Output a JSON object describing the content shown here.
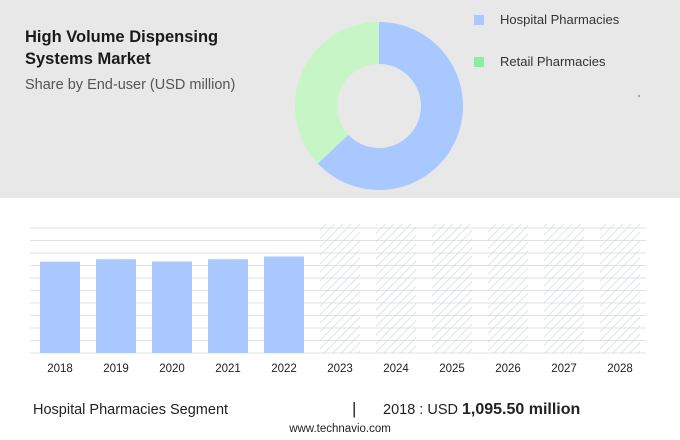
{
  "title": "High Volume Dispensing Systems Market",
  "subtitle": "Share by End-user (USD million)",
  "legend": [
    {
      "label": "Hospital Pharmacies",
      "color": "#a8c8ff"
    },
    {
      "label": "Retail Pharmacies",
      "color": "#86f0a0"
    }
  ],
  "footer": {
    "segment": "Hospital Pharmacies Segment",
    "divider": "|",
    "year_prefix": "2018 : USD ",
    "value": "1,095.50 million",
    "source": "www.technavio.com"
  },
  "chart_data": [
    {
      "type": "pie",
      "donut": true,
      "categories": [
        "Hospital Pharmacies",
        "Retail Pharmacies"
      ],
      "values": [
        63,
        37
      ],
      "colors": [
        "#a8c8ff",
        "#c6f5c6"
      ]
    },
    {
      "type": "bar",
      "categories": [
        "2018",
        "2019",
        "2020",
        "2021",
        "2022",
        "2023",
        "2024",
        "2025",
        "2026",
        "2027",
        "2028"
      ],
      "values": [
        1095.5,
        1125,
        1098,
        1125,
        1158,
        null,
        null,
        null,
        null,
        null,
        null
      ],
      "forecast_categories": [
        "2023",
        "2024",
        "2025",
        "2026",
        "2027",
        "2028"
      ],
      "ylim": [
        0,
        1500
      ],
      "grid": true,
      "colors": {
        "bar": "#a8c8ff",
        "forecast_hatch": "#c9d5ea",
        "grid": "#e2e2e2"
      }
    }
  ]
}
